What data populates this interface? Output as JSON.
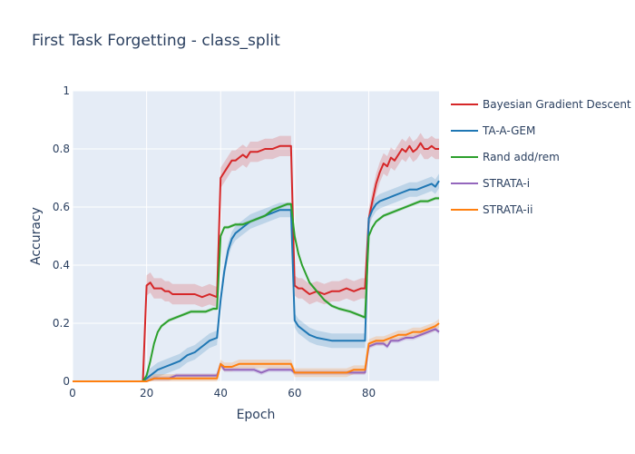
{
  "chart_data": {
    "type": "line",
    "title": "First Task Forgetting - class_split",
    "xlabel": "Epoch",
    "ylabel": "Accuracy",
    "xlim": [
      0,
      99
    ],
    "ylim": [
      0,
      1
    ],
    "x_ticks": [
      "0",
      "20",
      "40",
      "60",
      "80"
    ],
    "y_ticks": [
      "0",
      "0.2",
      "0.4",
      "0.6",
      "0.8",
      "1"
    ],
    "x_tick_values": [
      0,
      20,
      40,
      60,
      80
    ],
    "y_tick_values": [
      0,
      0.2,
      0.4,
      0.6,
      0.8,
      1
    ],
    "grid": true,
    "legend_position": "right",
    "background_color": "#e5ecf6",
    "series": [
      {
        "name": "Bayesian Gradient Descent",
        "color": "#d62728",
        "band": 0.035,
        "points": [
          [
            0,
            0
          ],
          [
            19,
            0
          ],
          [
            20,
            0.33
          ],
          [
            21,
            0.34
          ],
          [
            22,
            0.32
          ],
          [
            23,
            0.32
          ],
          [
            24,
            0.32
          ],
          [
            25,
            0.31
          ],
          [
            26,
            0.31
          ],
          [
            27,
            0.3
          ],
          [
            30,
            0.3
          ],
          [
            33,
            0.3
          ],
          [
            35,
            0.29
          ],
          [
            37,
            0.3
          ],
          [
            39,
            0.29
          ],
          [
            40,
            0.7
          ],
          [
            41,
            0.72
          ],
          [
            42,
            0.74
          ],
          [
            43,
            0.76
          ],
          [
            44,
            0.76
          ],
          [
            45,
            0.77
          ],
          [
            46,
            0.78
          ],
          [
            47,
            0.77
          ],
          [
            48,
            0.79
          ],
          [
            50,
            0.79
          ],
          [
            52,
            0.8
          ],
          [
            54,
            0.8
          ],
          [
            56,
            0.81
          ],
          [
            57,
            0.81
          ],
          [
            58,
            0.81
          ],
          [
            59,
            0.81
          ],
          [
            60,
            0.33
          ],
          [
            61,
            0.32
          ],
          [
            62,
            0.32
          ],
          [
            63,
            0.31
          ],
          [
            64,
            0.3
          ],
          [
            66,
            0.31
          ],
          [
            68,
            0.3
          ],
          [
            70,
            0.31
          ],
          [
            72,
            0.31
          ],
          [
            74,
            0.32
          ],
          [
            76,
            0.31
          ],
          [
            78,
            0.32
          ],
          [
            79,
            0.32
          ],
          [
            80,
            0.56
          ],
          [
            81,
            0.62
          ],
          [
            82,
            0.68
          ],
          [
            83,
            0.72
          ],
          [
            84,
            0.75
          ],
          [
            85,
            0.74
          ],
          [
            86,
            0.77
          ],
          [
            87,
            0.76
          ],
          [
            88,
            0.78
          ],
          [
            89,
            0.8
          ],
          [
            90,
            0.79
          ],
          [
            91,
            0.81
          ],
          [
            92,
            0.79
          ],
          [
            93,
            0.8
          ],
          [
            94,
            0.82
          ],
          [
            95,
            0.8
          ],
          [
            96,
            0.8
          ],
          [
            97,
            0.81
          ],
          [
            98,
            0.8
          ],
          [
            99,
            0.8
          ]
        ]
      },
      {
        "name": "TA-A-GEM",
        "color": "#1f77b4",
        "band": 0.025,
        "points": [
          [
            0,
            0
          ],
          [
            19,
            0
          ],
          [
            20,
            0.01
          ],
          [
            21,
            0.02
          ],
          [
            22,
            0.03
          ],
          [
            23,
            0.04
          ],
          [
            25,
            0.05
          ],
          [
            27,
            0.06
          ],
          [
            29,
            0.07
          ],
          [
            31,
            0.09
          ],
          [
            33,
            0.1
          ],
          [
            35,
            0.12
          ],
          [
            37,
            0.14
          ],
          [
            39,
            0.15
          ],
          [
            40,
            0.28
          ],
          [
            41,
            0.38
          ],
          [
            42,
            0.45
          ],
          [
            43,
            0.49
          ],
          [
            44,
            0.51
          ],
          [
            46,
            0.53
          ],
          [
            48,
            0.55
          ],
          [
            50,
            0.56
          ],
          [
            52,
            0.57
          ],
          [
            54,
            0.58
          ],
          [
            56,
            0.59
          ],
          [
            58,
            0.59
          ],
          [
            59,
            0.59
          ],
          [
            60,
            0.21
          ],
          [
            61,
            0.19
          ],
          [
            62,
            0.18
          ],
          [
            64,
            0.16
          ],
          [
            66,
            0.15
          ],
          [
            70,
            0.14
          ],
          [
            75,
            0.14
          ],
          [
            79,
            0.14
          ],
          [
            80,
            0.56
          ],
          [
            81,
            0.59
          ],
          [
            82,
            0.61
          ],
          [
            83,
            0.62
          ],
          [
            85,
            0.63
          ],
          [
            87,
            0.64
          ],
          [
            89,
            0.65
          ],
          [
            91,
            0.66
          ],
          [
            93,
            0.66
          ],
          [
            95,
            0.67
          ],
          [
            97,
            0.68
          ],
          [
            98,
            0.67
          ],
          [
            99,
            0.69
          ]
        ]
      },
      {
        "name": "Rand add/rem",
        "color": "#2ca02c",
        "band": 0.006,
        "points": [
          [
            0,
            0
          ],
          [
            19,
            0
          ],
          [
            20,
            0.02
          ],
          [
            21,
            0.07
          ],
          [
            22,
            0.13
          ],
          [
            23,
            0.17
          ],
          [
            24,
            0.19
          ],
          [
            25,
            0.2
          ],
          [
            26,
            0.21
          ],
          [
            28,
            0.22
          ],
          [
            30,
            0.23
          ],
          [
            32,
            0.24
          ],
          [
            34,
            0.24
          ],
          [
            36,
            0.24
          ],
          [
            38,
            0.25
          ],
          [
            39,
            0.25
          ],
          [
            40,
            0.5
          ],
          [
            41,
            0.53
          ],
          [
            42,
            0.53
          ],
          [
            44,
            0.54
          ],
          [
            46,
            0.54
          ],
          [
            48,
            0.55
          ],
          [
            50,
            0.56
          ],
          [
            52,
            0.57
          ],
          [
            54,
            0.59
          ],
          [
            56,
            0.6
          ],
          [
            58,
            0.61
          ],
          [
            59,
            0.61
          ],
          [
            60,
            0.5
          ],
          [
            61,
            0.44
          ],
          [
            62,
            0.4
          ],
          [
            63,
            0.37
          ],
          [
            64,
            0.34
          ],
          [
            66,
            0.31
          ],
          [
            68,
            0.28
          ],
          [
            70,
            0.26
          ],
          [
            72,
            0.25
          ],
          [
            75,
            0.24
          ],
          [
            79,
            0.22
          ],
          [
            80,
            0.5
          ],
          [
            81,
            0.53
          ],
          [
            82,
            0.55
          ],
          [
            84,
            0.57
          ],
          [
            86,
            0.58
          ],
          [
            88,
            0.59
          ],
          [
            90,
            0.6
          ],
          [
            92,
            0.61
          ],
          [
            94,
            0.62
          ],
          [
            96,
            0.62
          ],
          [
            98,
            0.63
          ],
          [
            99,
            0.63
          ]
        ]
      },
      {
        "name": "STRATA-i",
        "color": "#9467bd",
        "band": 0.008,
        "points": [
          [
            0,
            0
          ],
          [
            19,
            0
          ],
          [
            20,
            0.0
          ],
          [
            22,
            0.01
          ],
          [
            24,
            0.01
          ],
          [
            26,
            0.01
          ],
          [
            28,
            0.02
          ],
          [
            30,
            0.02
          ],
          [
            32,
            0.02
          ],
          [
            34,
            0.02
          ],
          [
            36,
            0.02
          ],
          [
            38,
            0.02
          ],
          [
            39,
            0.02
          ],
          [
            40,
            0.06
          ],
          [
            41,
            0.04
          ],
          [
            43,
            0.04
          ],
          [
            45,
            0.04
          ],
          [
            47,
            0.04
          ],
          [
            49,
            0.04
          ],
          [
            51,
            0.03
          ],
          [
            53,
            0.04
          ],
          [
            55,
            0.04
          ],
          [
            57,
            0.04
          ],
          [
            59,
            0.04
          ],
          [
            60,
            0.03
          ],
          [
            62,
            0.03
          ],
          [
            64,
            0.03
          ],
          [
            66,
            0.03
          ],
          [
            68,
            0.03
          ],
          [
            70,
            0.03
          ],
          [
            72,
            0.03
          ],
          [
            74,
            0.03
          ],
          [
            76,
            0.03
          ],
          [
            79,
            0.03
          ],
          [
            80,
            0.12
          ],
          [
            82,
            0.13
          ],
          [
            84,
            0.13
          ],
          [
            85,
            0.12
          ],
          [
            86,
            0.14
          ],
          [
            88,
            0.14
          ],
          [
            90,
            0.15
          ],
          [
            92,
            0.15
          ],
          [
            94,
            0.16
          ],
          [
            96,
            0.17
          ],
          [
            98,
            0.18
          ],
          [
            99,
            0.17
          ]
        ]
      },
      {
        "name": "STRATA-ii",
        "color": "#ff7f0e",
        "band": 0.015,
        "points": [
          [
            0,
            0
          ],
          [
            19,
            0
          ],
          [
            20,
            0.0
          ],
          [
            22,
            0.01
          ],
          [
            24,
            0.01
          ],
          [
            26,
            0.01
          ],
          [
            28,
            0.01
          ],
          [
            30,
            0.01
          ],
          [
            32,
            0.01
          ],
          [
            34,
            0.01
          ],
          [
            36,
            0.01
          ],
          [
            38,
            0.01
          ],
          [
            39,
            0.01
          ],
          [
            40,
            0.06
          ],
          [
            41,
            0.05
          ],
          [
            43,
            0.05
          ],
          [
            45,
            0.06
          ],
          [
            47,
            0.06
          ],
          [
            49,
            0.06
          ],
          [
            51,
            0.06
          ],
          [
            53,
            0.06
          ],
          [
            55,
            0.06
          ],
          [
            57,
            0.06
          ],
          [
            59,
            0.06
          ],
          [
            60,
            0.03
          ],
          [
            62,
            0.03
          ],
          [
            64,
            0.03
          ],
          [
            66,
            0.03
          ],
          [
            68,
            0.03
          ],
          [
            70,
            0.03
          ],
          [
            72,
            0.03
          ],
          [
            74,
            0.03
          ],
          [
            76,
            0.04
          ],
          [
            79,
            0.04
          ],
          [
            80,
            0.13
          ],
          [
            82,
            0.14
          ],
          [
            84,
            0.14
          ],
          [
            86,
            0.15
          ],
          [
            88,
            0.16
          ],
          [
            90,
            0.16
          ],
          [
            92,
            0.17
          ],
          [
            94,
            0.17
          ],
          [
            96,
            0.18
          ],
          [
            98,
            0.19
          ],
          [
            99,
            0.2
          ]
        ]
      }
    ]
  }
}
